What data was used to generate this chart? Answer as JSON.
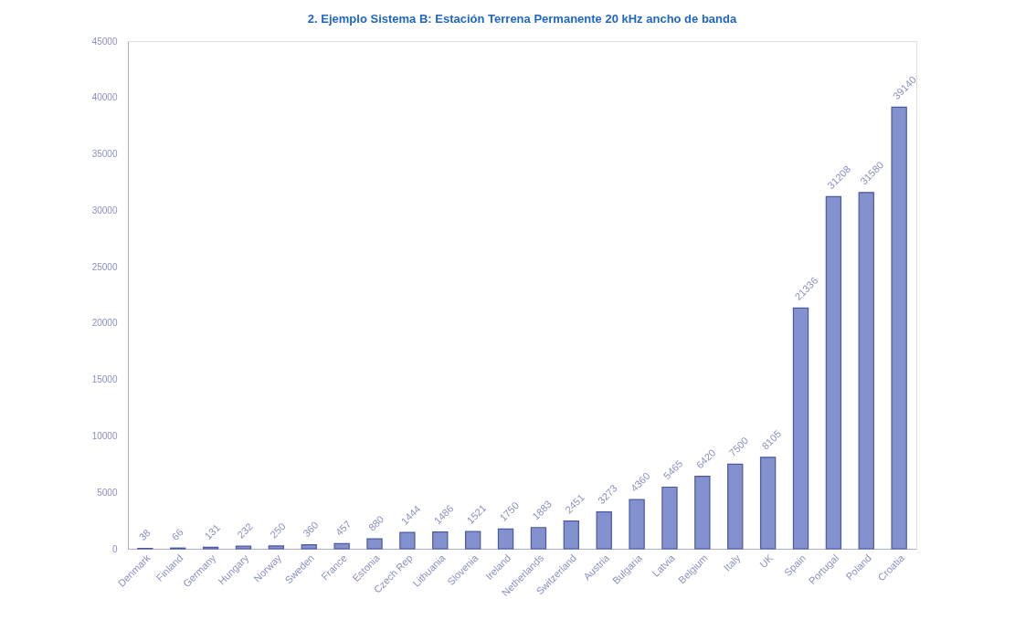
{
  "chart_data": {
    "type": "bar",
    "title": "2.  Ejemplo Sistema B: Estación Terrena Permanente 20 kHz ancho de banda",
    "categories": [
      "Denmark",
      "Finland",
      "Germany",
      "Hungary",
      "Norway",
      "Sweden",
      "France",
      "Estonia",
      "Czech Rep",
      "Lithuania",
      "Slovenia",
      "Ireland",
      "Netherlands",
      "Switzerland",
      "Austria",
      "Bulgaria",
      "Latvia",
      "Belgium",
      "Italy",
      "UK",
      "Spain",
      "Portugal",
      "Poland",
      "Croatia"
    ],
    "values": [
      38,
      66,
      131,
      232,
      250,
      360,
      457,
      880,
      1444,
      1486,
      1521,
      1750,
      1883,
      2451,
      3273,
      4360,
      5465,
      6420,
      7500,
      8105,
      21336,
      31208,
      31580,
      39140
    ],
    "color": "#8491cf",
    "ylim": [
      0,
      45000
    ],
    "yticks": [
      0,
      5000,
      10000,
      15000,
      20000,
      25000,
      30000,
      35000,
      40000,
      45000
    ],
    "data_labels": true,
    "grid": false
  }
}
